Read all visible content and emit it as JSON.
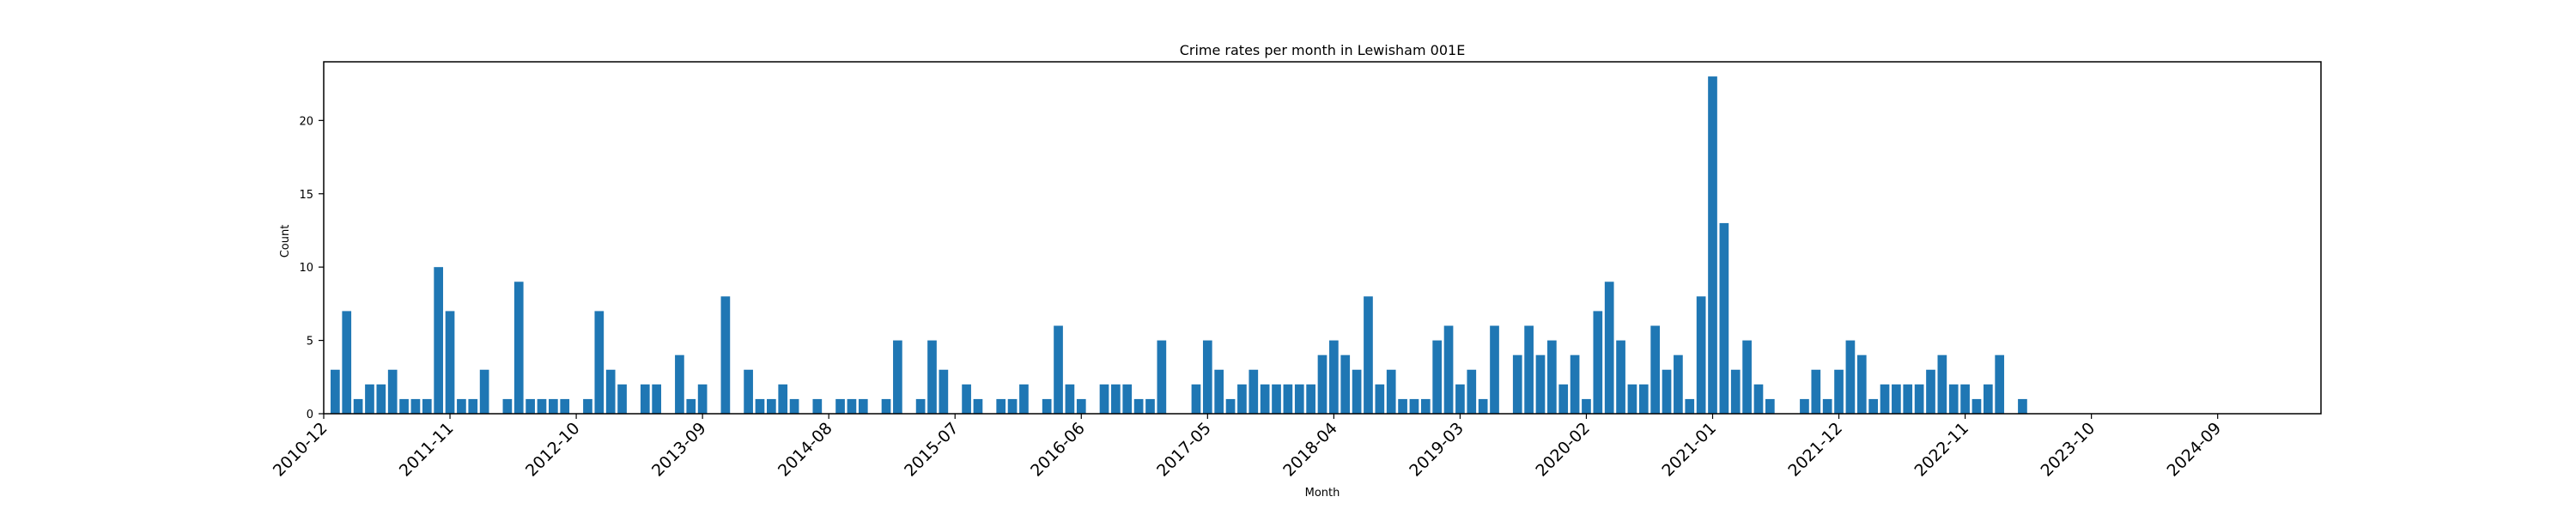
{
  "chart_data": {
    "type": "bar",
    "title": "Crime rates per month in Lewisham 001E",
    "xlabel": "Month",
    "ylabel": "Count",
    "ylim": [
      0,
      24
    ],
    "yticks": [
      0,
      5,
      10,
      15,
      20
    ],
    "start_month": "2010-12",
    "end_month": "2025-06",
    "xtick_labels": [
      "2010-12",
      "2011-11",
      "2012-10",
      "2013-09",
      "2014-08",
      "2015-07",
      "2016-06",
      "2017-05",
      "2018-04",
      "2019-03",
      "2020-02",
      "2021-01",
      "2021-12",
      "2022-11",
      "2023-10",
      "2024-09"
    ],
    "bar_color": "#1f77b4",
    "grid": false,
    "data": [
      {
        "month": "2011-01",
        "value": 3
      },
      {
        "month": "2011-02",
        "value": 7
      },
      {
        "month": "2011-03",
        "value": 1
      },
      {
        "month": "2011-04",
        "value": 2
      },
      {
        "month": "2011-05",
        "value": 2
      },
      {
        "month": "2011-06",
        "value": 3
      },
      {
        "month": "2011-07",
        "value": 1
      },
      {
        "month": "2011-08",
        "value": 1
      },
      {
        "month": "2011-09",
        "value": 1
      },
      {
        "month": "2011-10",
        "value": 10
      },
      {
        "month": "2011-11",
        "value": 7
      },
      {
        "month": "2011-12",
        "value": 1
      },
      {
        "month": "2012-01",
        "value": 1
      },
      {
        "month": "2012-02",
        "value": 3
      },
      {
        "month": "2012-04",
        "value": 1
      },
      {
        "month": "2012-05",
        "value": 9
      },
      {
        "month": "2012-06",
        "value": 1
      },
      {
        "month": "2012-07",
        "value": 1
      },
      {
        "month": "2012-08",
        "value": 1
      },
      {
        "month": "2012-09",
        "value": 1
      },
      {
        "month": "2012-11",
        "value": 1
      },
      {
        "month": "2012-12",
        "value": 7
      },
      {
        "month": "2013-01",
        "value": 3
      },
      {
        "month": "2013-02",
        "value": 2
      },
      {
        "month": "2013-04",
        "value": 2
      },
      {
        "month": "2013-05",
        "value": 2
      },
      {
        "month": "2013-07",
        "value": 4
      },
      {
        "month": "2013-08",
        "value": 1
      },
      {
        "month": "2013-09",
        "value": 2
      },
      {
        "month": "2013-11",
        "value": 8
      },
      {
        "month": "2014-01",
        "value": 3
      },
      {
        "month": "2014-02",
        "value": 1
      },
      {
        "month": "2014-03",
        "value": 1
      },
      {
        "month": "2014-04",
        "value": 2
      },
      {
        "month": "2014-05",
        "value": 1
      },
      {
        "month": "2014-07",
        "value": 1
      },
      {
        "month": "2014-09",
        "value": 1
      },
      {
        "month": "2014-10",
        "value": 1
      },
      {
        "month": "2014-11",
        "value": 1
      },
      {
        "month": "2015-01",
        "value": 1
      },
      {
        "month": "2015-02",
        "value": 5
      },
      {
        "month": "2015-04",
        "value": 1
      },
      {
        "month": "2015-05",
        "value": 5
      },
      {
        "month": "2015-06",
        "value": 3
      },
      {
        "month": "2015-08",
        "value": 2
      },
      {
        "month": "2015-09",
        "value": 1
      },
      {
        "month": "2015-11",
        "value": 1
      },
      {
        "month": "2015-12",
        "value": 1
      },
      {
        "month": "2016-01",
        "value": 2
      },
      {
        "month": "2016-03",
        "value": 1
      },
      {
        "month": "2016-04",
        "value": 6
      },
      {
        "month": "2016-05",
        "value": 2
      },
      {
        "month": "2016-06",
        "value": 1
      },
      {
        "month": "2016-08",
        "value": 2
      },
      {
        "month": "2016-09",
        "value": 2
      },
      {
        "month": "2016-10",
        "value": 2
      },
      {
        "month": "2016-11",
        "value": 1
      },
      {
        "month": "2016-12",
        "value": 1
      },
      {
        "month": "2017-01",
        "value": 5
      },
      {
        "month": "2017-04",
        "value": 2
      },
      {
        "month": "2017-05",
        "value": 5
      },
      {
        "month": "2017-06",
        "value": 3
      },
      {
        "month": "2017-07",
        "value": 1
      },
      {
        "month": "2017-08",
        "value": 2
      },
      {
        "month": "2017-09",
        "value": 3
      },
      {
        "month": "2017-10",
        "value": 2
      },
      {
        "month": "2017-11",
        "value": 2
      },
      {
        "month": "2017-12",
        "value": 2
      },
      {
        "month": "2018-01",
        "value": 2
      },
      {
        "month": "2018-02",
        "value": 2
      },
      {
        "month": "2018-03",
        "value": 4
      },
      {
        "month": "2018-04",
        "value": 5
      },
      {
        "month": "2018-05",
        "value": 4
      },
      {
        "month": "2018-06",
        "value": 3
      },
      {
        "month": "2018-07",
        "value": 8
      },
      {
        "month": "2018-08",
        "value": 2
      },
      {
        "month": "2018-09",
        "value": 3
      },
      {
        "month": "2018-10",
        "value": 1
      },
      {
        "month": "2018-11",
        "value": 1
      },
      {
        "month": "2018-12",
        "value": 1
      },
      {
        "month": "2019-01",
        "value": 5
      },
      {
        "month": "2019-02",
        "value": 6
      },
      {
        "month": "2019-03",
        "value": 2
      },
      {
        "month": "2019-04",
        "value": 3
      },
      {
        "month": "2019-05",
        "value": 1
      },
      {
        "month": "2019-06",
        "value": 6
      },
      {
        "month": "2019-08",
        "value": 4
      },
      {
        "month": "2019-09",
        "value": 6
      },
      {
        "month": "2019-10",
        "value": 4
      },
      {
        "month": "2019-11",
        "value": 5
      },
      {
        "month": "2019-12",
        "value": 2
      },
      {
        "month": "2020-01",
        "value": 4
      },
      {
        "month": "2020-02",
        "value": 1
      },
      {
        "month": "2020-03",
        "value": 7
      },
      {
        "month": "2020-04",
        "value": 9
      },
      {
        "month": "2020-05",
        "value": 5
      },
      {
        "month": "2020-06",
        "value": 2
      },
      {
        "month": "2020-07",
        "value": 2
      },
      {
        "month": "2020-08",
        "value": 6
      },
      {
        "month": "2020-09",
        "value": 3
      },
      {
        "month": "2020-10",
        "value": 4
      },
      {
        "month": "2020-11",
        "value": 1
      },
      {
        "month": "2020-12",
        "value": 8
      },
      {
        "month": "2021-01",
        "value": 23
      },
      {
        "month": "2021-02",
        "value": 13
      },
      {
        "month": "2021-03",
        "value": 3
      },
      {
        "month": "2021-04",
        "value": 5
      },
      {
        "month": "2021-05",
        "value": 2
      },
      {
        "month": "2021-06",
        "value": 1
      },
      {
        "month": "2021-09",
        "value": 1
      },
      {
        "month": "2021-10",
        "value": 3
      },
      {
        "month": "2021-11",
        "value": 1
      },
      {
        "month": "2021-12",
        "value": 3
      },
      {
        "month": "2022-01",
        "value": 5
      },
      {
        "month": "2022-02",
        "value": 4
      },
      {
        "month": "2022-03",
        "value": 1
      },
      {
        "month": "2022-04",
        "value": 2
      },
      {
        "month": "2022-05",
        "value": 2
      },
      {
        "month": "2022-06",
        "value": 2
      },
      {
        "month": "2022-07",
        "value": 2
      },
      {
        "month": "2022-08",
        "value": 3
      },
      {
        "month": "2022-09",
        "value": 4
      },
      {
        "month": "2022-10",
        "value": 2
      },
      {
        "month": "2022-11",
        "value": 2
      },
      {
        "month": "2022-12",
        "value": 1
      },
      {
        "month": "2023-01",
        "value": 2
      },
      {
        "month": "2023-02",
        "value": 4
      },
      {
        "month": "2023-04",
        "value": 1
      }
    ]
  }
}
